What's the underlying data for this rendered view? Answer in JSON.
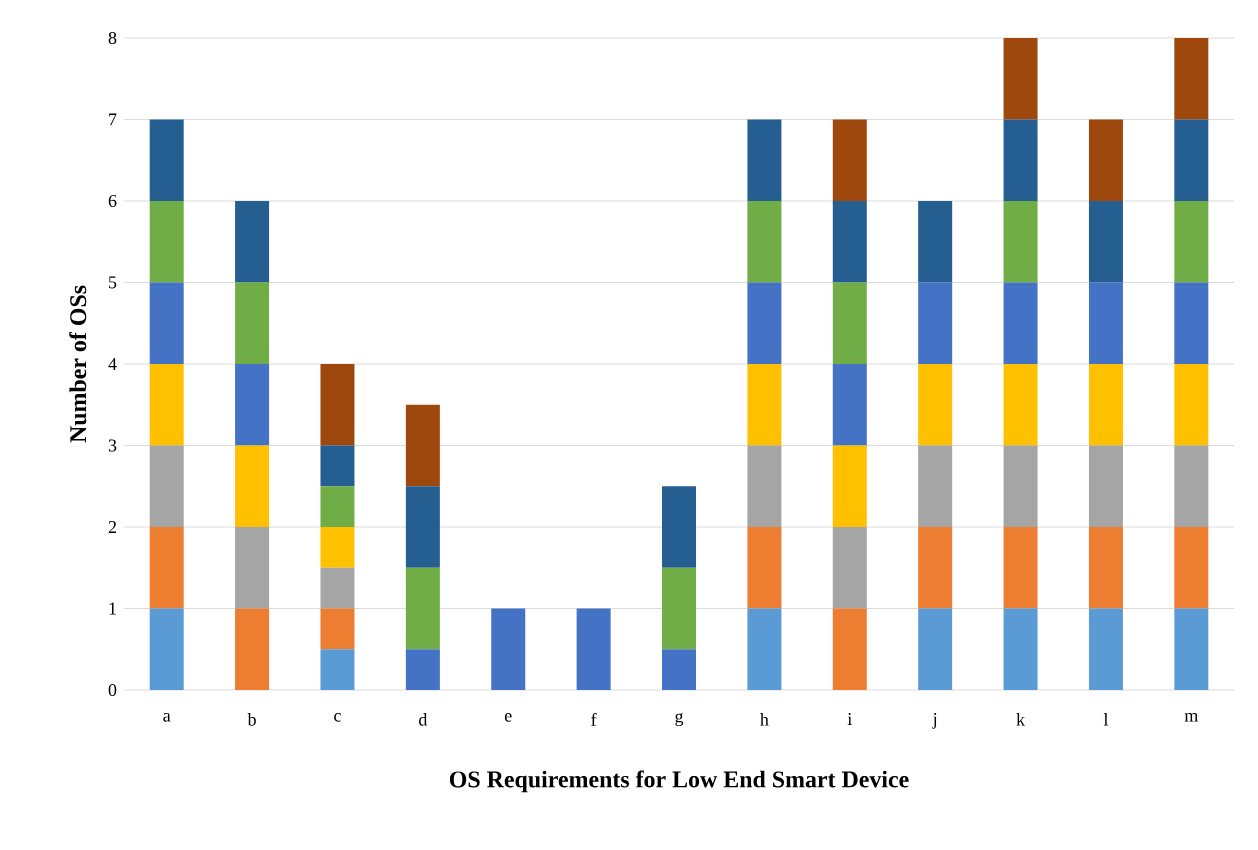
{
  "chart_data": {
    "type": "bar",
    "stacked": true,
    "xlabel": "OS Requirements for Low End Smart Device",
    "ylabel": "Number of OSs",
    "categories": [
      "a",
      "b",
      "c",
      "d",
      "e",
      "f",
      "g",
      "h",
      "i",
      "j",
      "k",
      "l",
      "m"
    ],
    "ylim": [
      0,
      8
    ],
    "yticks": [
      0,
      1,
      2,
      3,
      4,
      5,
      6,
      7,
      8
    ],
    "grid": "y",
    "series": [
      {
        "color": "#5b9bd5",
        "values": [
          1,
          0,
          0.5,
          0,
          0,
          0,
          0,
          1,
          0,
          1,
          1,
          1,
          1
        ]
      },
      {
        "color": "#ed7d31",
        "values": [
          1,
          1,
          0.5,
          0,
          0,
          0,
          0,
          1,
          1,
          1,
          1,
          1,
          1
        ]
      },
      {
        "color": "#a5a5a5",
        "values": [
          1,
          1,
          0.5,
          0,
          0,
          0,
          0,
          1,
          1,
          1,
          1,
          1,
          1
        ]
      },
      {
        "color": "#ffc000",
        "values": [
          1,
          1,
          0.5,
          0,
          0,
          0,
          0,
          1,
          1,
          1,
          1,
          1,
          1
        ]
      },
      {
        "color": "#4472c4",
        "values": [
          1,
          1,
          0,
          0.5,
          1,
          1,
          0.5,
          1,
          1,
          1,
          1,
          1,
          1
        ]
      },
      {
        "color": "#70ad47",
        "values": [
          1,
          1,
          0.5,
          1,
          0,
          0,
          1,
          1,
          1,
          0,
          1,
          0,
          1
        ]
      },
      {
        "color": "#255e91",
        "values": [
          1,
          1,
          0.5,
          1,
          0,
          0,
          1,
          1,
          1,
          1,
          1,
          1,
          1
        ]
      },
      {
        "color": "#9e480e",
        "values": [
          0,
          0,
          1,
          1,
          0,
          0,
          0,
          0,
          1,
          0,
          1,
          1,
          1
        ]
      }
    ]
  }
}
